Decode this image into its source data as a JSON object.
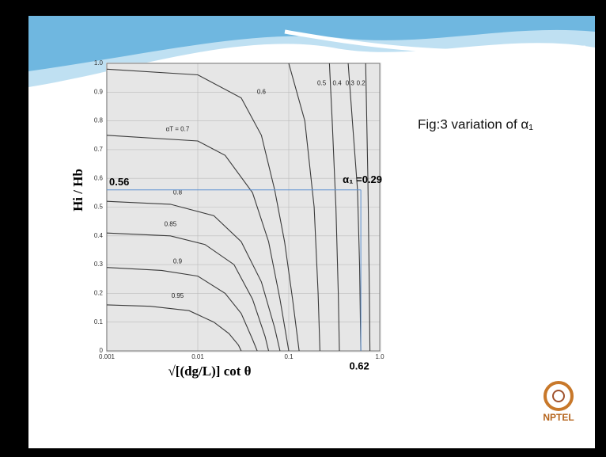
{
  "chart_data": {
    "type": "line",
    "title": "Fig:3 variation of α₁",
    "x_label": "√[(dg/L)] cot θ",
    "y_label": "Hi / Hb",
    "log_x": true,
    "grid": true,
    "color": "#3a3a3a",
    "xlim": [
      0.001,
      1
    ],
    "xticks": [
      0.001,
      0.01,
      0.1,
      {
        "value": 1,
        "label": "1.0"
      }
    ],
    "ylim": [
      0,
      1
    ],
    "yticks": [
      0,
      0.1,
      0.2,
      0.3,
      0.4,
      0.5,
      0.6,
      0.7,
      0.8,
      0.9,
      {
        "value": 1,
        "label": "1.0"
      }
    ],
    "series": [
      {
        "name": "0.95",
        "x": [
          0.001,
          0.003,
          0.008,
          0.015,
          0.022,
          0.028,
          0.03
        ],
        "values": [
          0.16,
          0.155,
          0.14,
          0.1,
          0.06,
          0.02,
          0
        ]
      },
      {
        "name": "0.9",
        "x": [
          0.001,
          0.004,
          0.01,
          0.02,
          0.03,
          0.04,
          0.045
        ],
        "values": [
          0.29,
          0.28,
          0.26,
          0.2,
          0.13,
          0.04,
          0
        ]
      },
      {
        "name": "0.85",
        "x": [
          0.001,
          0.005,
          0.012,
          0.025,
          0.04,
          0.055,
          0.06
        ],
        "values": [
          0.41,
          0.4,
          0.37,
          0.3,
          0.18,
          0.05,
          0
        ]
      },
      {
        "name": "0.8",
        "x": [
          0.001,
          0.005,
          0.015,
          0.03,
          0.05,
          0.07,
          0.08
        ],
        "values": [
          0.52,
          0.51,
          0.47,
          0.38,
          0.24,
          0.08,
          0
        ]
      },
      {
        "name": "αT = 0.7",
        "x": [
          0.001,
          0.01,
          0.02,
          0.04,
          0.06,
          0.08,
          0.1
        ],
        "values": [
          0.75,
          0.73,
          0.68,
          0.55,
          0.38,
          0.18,
          0
        ]
      },
      {
        "name": "0.6",
        "x": [
          0.001,
          0.01,
          0.03,
          0.05,
          0.07,
          0.09,
          0.11,
          0.13
        ],
        "values": [
          0.98,
          0.96,
          0.88,
          0.75,
          0.56,
          0.38,
          0.18,
          0
        ]
      },
      {
        "name": "0.5",
        "x": [
          0.1,
          0.15,
          0.19,
          0.21,
          0.22
        ],
        "values": [
          1,
          0.8,
          0.5,
          0.2,
          0
        ]
      },
      {
        "name": "0.4",
        "x": [
          0.28,
          0.3,
          0.33,
          0.35,
          0.36
        ],
        "values": [
          1,
          0.8,
          0.5,
          0.2,
          0
        ]
      },
      {
        "name": "0.3",
        "x": [
          0.45,
          0.5,
          0.57,
          0.6,
          0.62
        ],
        "values": [
          1,
          0.8,
          0.56,
          0.3,
          0
        ]
      },
      {
        "name": "0.2",
        "x": [
          0.7,
          0.74,
          0.77,
          0.78
        ],
        "values": [
          1,
          0.6,
          0.2,
          0
        ]
      }
    ],
    "guide": {
      "y": 0.56,
      "x": 0.62,
      "label": "α₁ =0.29"
    },
    "logo": "NPTEL"
  }
}
